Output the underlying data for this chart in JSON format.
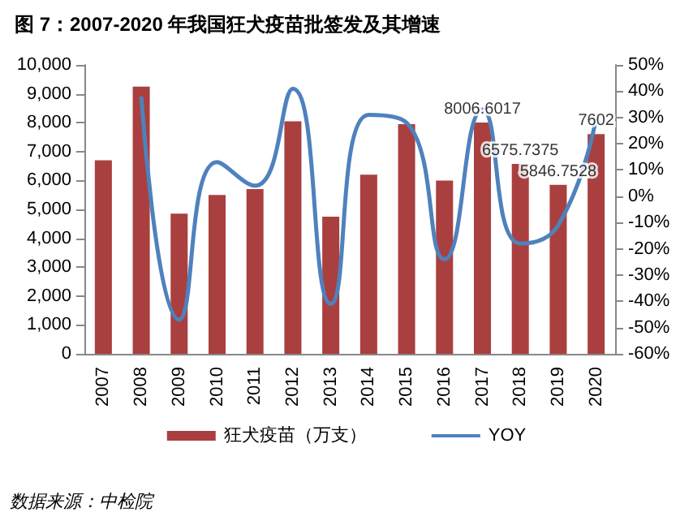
{
  "chart_data": {
    "type": "bar",
    "title": "图 7：2007-2020 年我国狂犬疫苗批签发及其增速",
    "categories": [
      "2007",
      "2008",
      "2009",
      "2010",
      "2011",
      "2012",
      "2013",
      "2014",
      "2015",
      "2016",
      "2017",
      "2018",
      "2019",
      "2020"
    ],
    "series": [
      {
        "name": "狂犬疫苗（万支）",
        "color": "#a9403f",
        "values": [
          6700,
          9250,
          4850,
          5500,
          5700,
          8050,
          4750,
          6200,
          7950,
          6000,
          8006.6017,
          6575.7375,
          5846.7528,
          7602
        ],
        "value_labels": [
          null,
          null,
          null,
          null,
          null,
          null,
          null,
          null,
          null,
          null,
          "8006.6017",
          "6575.7375",
          "5846.7528",
          "7602"
        ]
      },
      {
        "name": "YOY",
        "type": "line",
        "axis": "y2",
        "color": "#4f81bd",
        "values": [
          null,
          38,
          -47,
          13,
          4,
          41,
          -41,
          31,
          28,
          -24,
          33,
          -18,
          -11,
          30
        ]
      }
    ],
    "ylim": [
      0,
      10000
    ],
    "yticks": [
      0,
      {
        "value": 1000,
        "label": "1,000"
      },
      {
        "value": 2000,
        "label": "2,000"
      },
      {
        "value": 3000,
        "label": "3,000"
      },
      {
        "value": 4000,
        "label": "4,000"
      },
      {
        "value": 5000,
        "label": "5,000"
      },
      {
        "value": 6000,
        "label": "6,000"
      },
      {
        "value": 7000,
        "label": "7,000"
      },
      {
        "value": 8000,
        "label": "8,000"
      },
      {
        "value": 9000,
        "label": "9,000"
      },
      {
        "value": 10000,
        "label": "10,000"
      }
    ],
    "y2lim": [
      -60,
      50
    ],
    "y2ticks": [
      {
        "value": -60,
        "label": "-60%"
      },
      {
        "value": -50,
        "label": "-50%"
      },
      {
        "value": -40,
        "label": "-40%"
      },
      {
        "value": -30,
        "label": "-30%"
      },
      {
        "value": -20,
        "label": "-20%"
      },
      {
        "value": -10,
        "label": "-10%"
      },
      {
        "value": 0,
        "label": "0%"
      },
      {
        "value": 10,
        "label": "10%"
      },
      {
        "value": 20,
        "label": "20%"
      },
      {
        "value": 30,
        "label": "30%"
      },
      {
        "value": 40,
        "label": "40%"
      },
      {
        "value": 50,
        "label": "50%"
      }
    ],
    "grid": false,
    "legend": "bottom",
    "marker": "none",
    "annotations": [
      "数据来源：中检院"
    ]
  }
}
